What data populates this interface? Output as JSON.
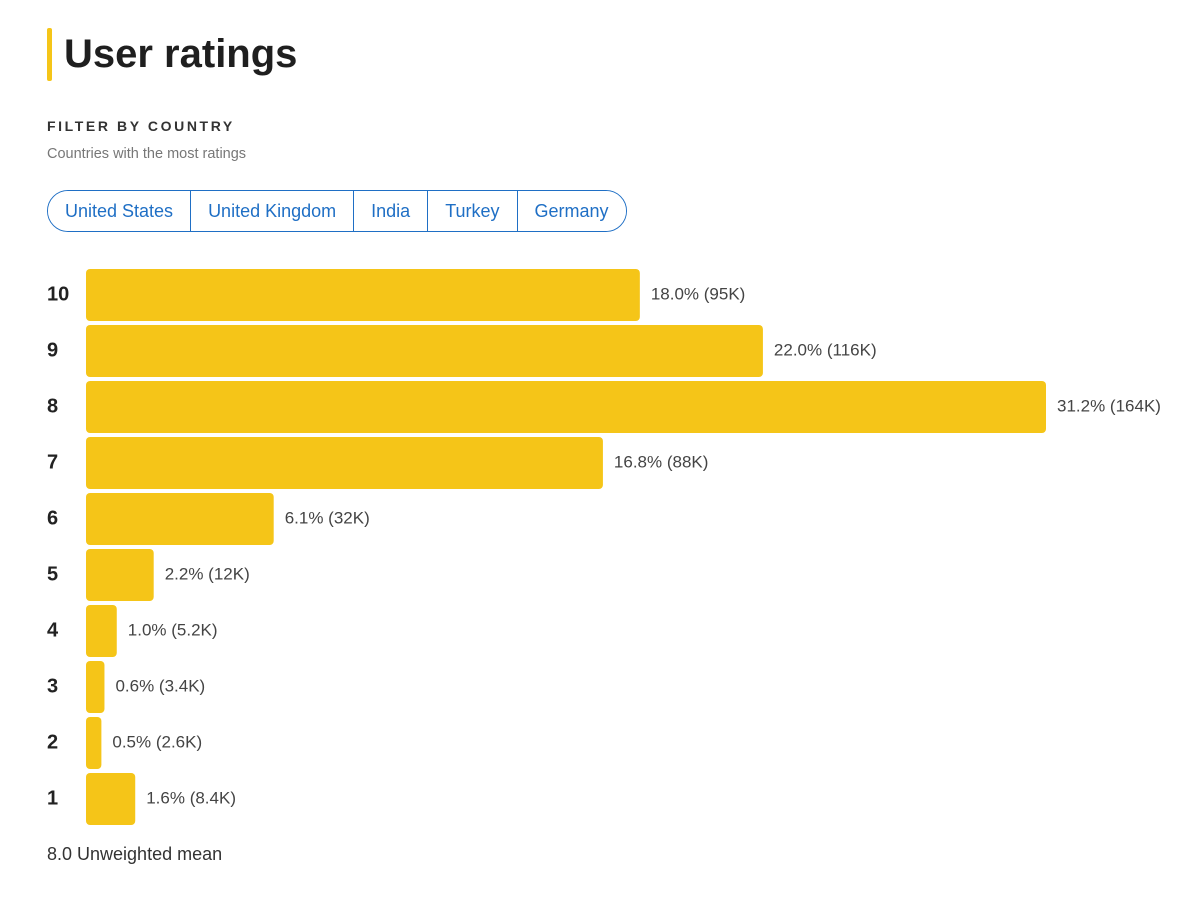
{
  "header": {
    "title": "User ratings"
  },
  "filter": {
    "label": "FILTER BY COUNTRY",
    "subtitle": "Countries with the most ratings",
    "buttons": [
      "United States",
      "United Kingdom",
      "India",
      "Turkey",
      "Germany"
    ]
  },
  "chart_data": {
    "type": "bar",
    "orientation": "horizontal",
    "color": "#f5c518",
    "categories": [
      "10",
      "9",
      "8",
      "7",
      "6",
      "5",
      "4",
      "3",
      "2",
      "1"
    ],
    "values": [
      18.0,
      22.0,
      31.2,
      16.8,
      6.1,
      2.2,
      1.0,
      0.6,
      0.5,
      1.6
    ],
    "value_labels": [
      "18.0% (95K)",
      "22.0% (116K)",
      "31.2% (164K)",
      "16.8% (88K)",
      "6.1% (32K)",
      "2.2% (12K)",
      "1.0% (5.2K)",
      "0.6% (3.4K)",
      "0.5% (2.6K)",
      "1.6% (8.4K)"
    ]
  },
  "footer": {
    "mean": "8.0 Unweighted mean"
  }
}
